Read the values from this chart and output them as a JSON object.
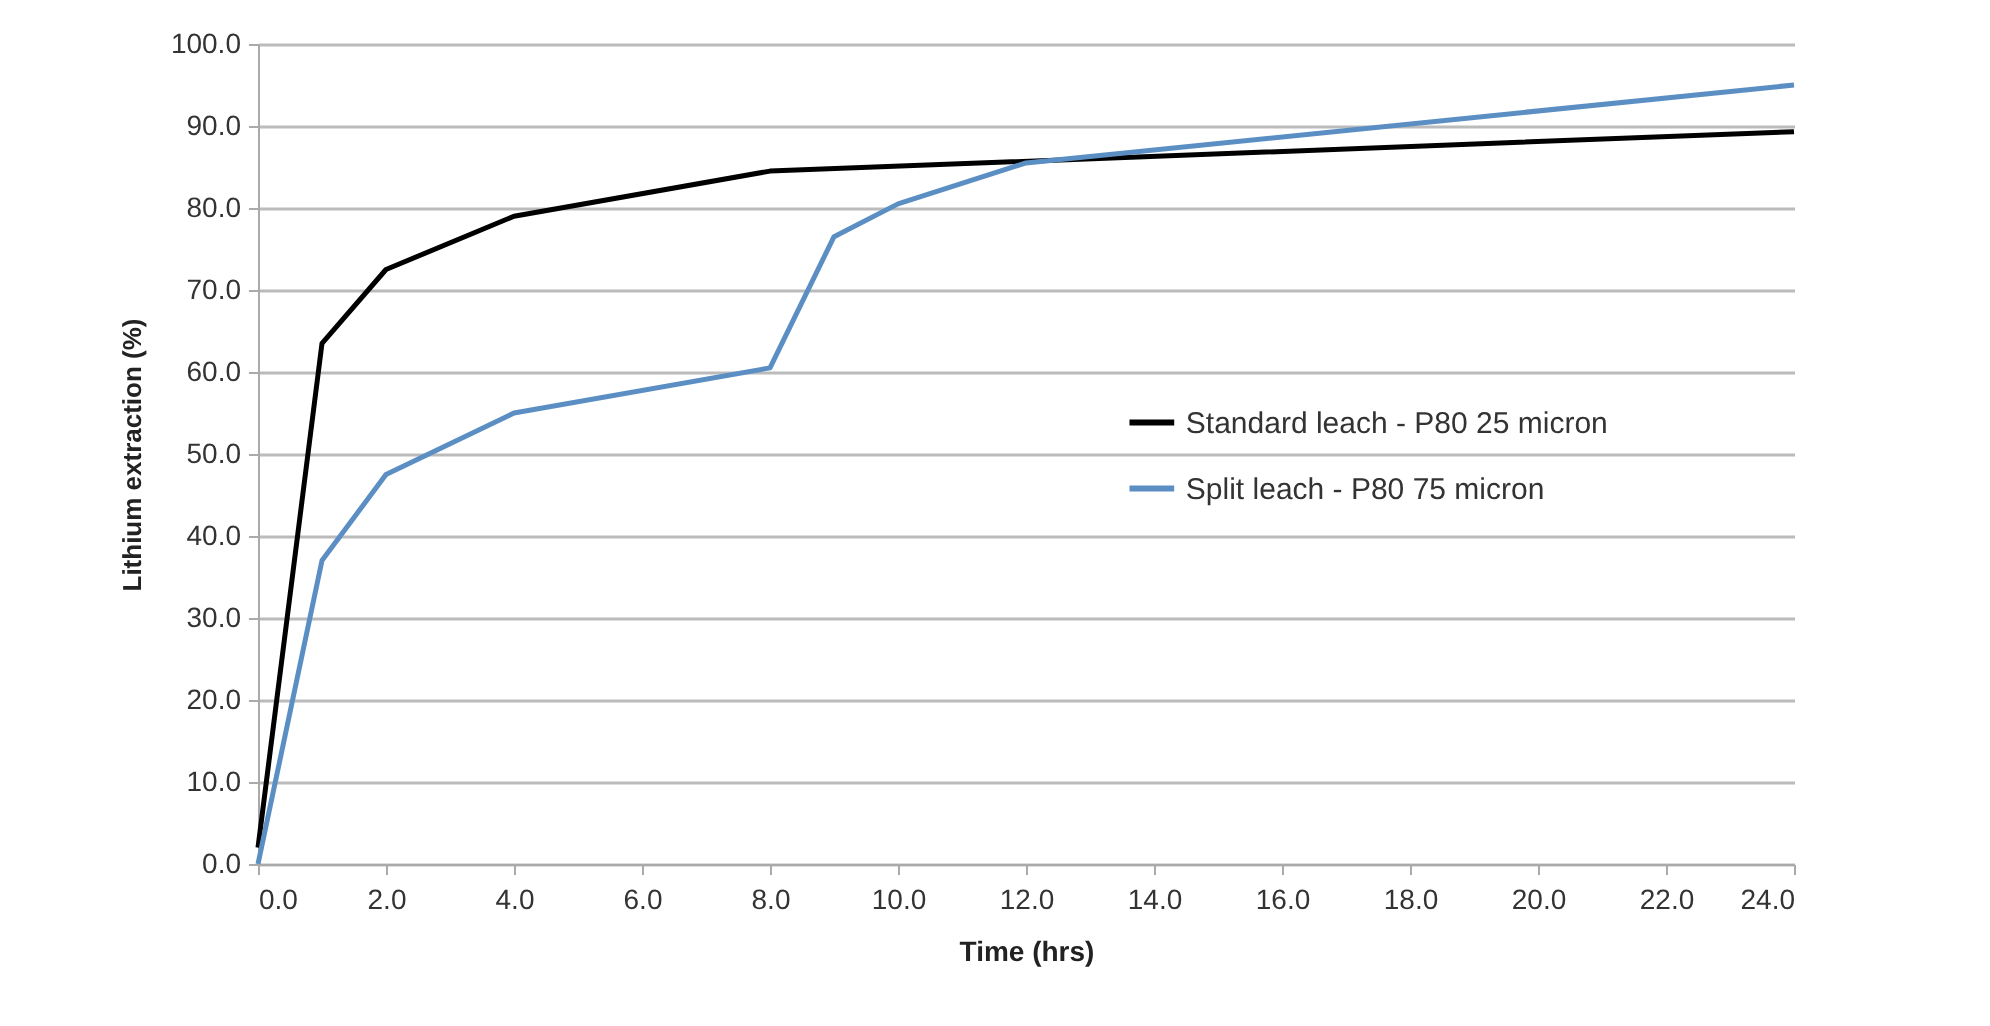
{
  "chart_data": {
    "type": "line",
    "xlabel": "Time (hrs)",
    "ylabel": "Lithium extraction (%)",
    "xlim": [
      0,
      24
    ],
    "xticks": [
      {
        "value": 0,
        "label": "0.0"
      },
      {
        "value": 2,
        "label": "2.0"
      },
      {
        "value": 4,
        "label": "4.0"
      },
      {
        "value": 6,
        "label": "6.0"
      },
      {
        "value": 8,
        "label": "8.0"
      },
      {
        "value": 10,
        "label": "10.0"
      },
      {
        "value": 12,
        "label": "12.0"
      },
      {
        "value": 14,
        "label": "14.0"
      },
      {
        "value": 16,
        "label": "16.0"
      },
      {
        "value": 18,
        "label": "18.0"
      },
      {
        "value": 20,
        "label": "20.0"
      },
      {
        "value": 22,
        "label": "22.0"
      },
      {
        "value": 24,
        "label": "24.0"
      }
    ],
    "ylim": [
      0,
      100
    ],
    "yticks": [
      {
        "value": 0,
        "label": "0.0"
      },
      {
        "value": 10,
        "label": "10.0"
      },
      {
        "value": 20,
        "label": "20.0"
      },
      {
        "value": 30,
        "label": "30.0"
      },
      {
        "value": 40,
        "label": "40.0"
      },
      {
        "value": 50,
        "label": "50.0"
      },
      {
        "value": 60,
        "label": "60.0"
      },
      {
        "value": 70,
        "label": "70.0"
      },
      {
        "value": 80,
        "label": "80.0"
      },
      {
        "value": 90,
        "label": "90.0"
      },
      {
        "value": 100,
        "label": "100.0"
      }
    ],
    "grid": "y",
    "legend": "right",
    "line_style": "solid",
    "series": [
      {
        "name": "Standard leach - P80 25 micron",
        "color": "#000000",
        "x": [
          0,
          1,
          2,
          4,
          8,
          24
        ],
        "values": [
          2,
          63.5,
          72.5,
          79,
          84.5,
          89.3
        ]
      },
      {
        "name": "Split leach -  P80 75 micron",
        "color": "#5b8fc4",
        "x": [
          0,
          1,
          2,
          4,
          8,
          9,
          10,
          12,
          24
        ],
        "values": [
          0,
          37,
          47.5,
          55,
          60.5,
          76.5,
          80.5,
          85.5,
          95
        ]
      }
    ]
  }
}
